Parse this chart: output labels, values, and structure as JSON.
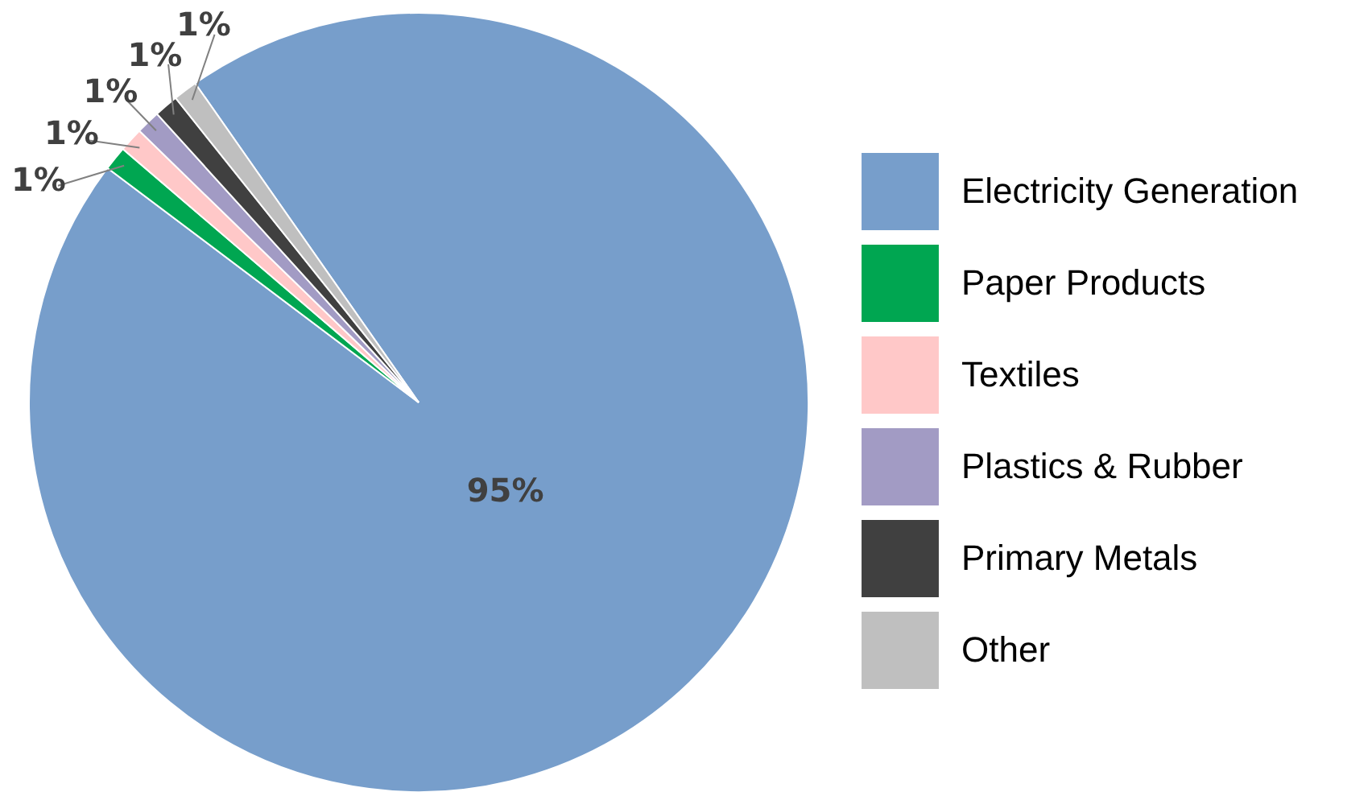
{
  "chart_data": {
    "type": "pie",
    "categories": [
      "Electricity Generation",
      "Paper Products",
      "Textiles",
      "Plastics & Rubber",
      "Primary Metals",
      "Other"
    ],
    "values": [
      95,
      1,
      1,
      1,
      1,
      1
    ],
    "colors": [
      "#779ecb",
      "#00a651",
      "#ffc8c8",
      "#a29bc4",
      "#404040",
      "#bfbfbf"
    ],
    "value_labels": [
      "95%",
      "1%",
      "1%",
      "1%",
      "1%",
      "1%"
    ],
    "legend": "right"
  }
}
